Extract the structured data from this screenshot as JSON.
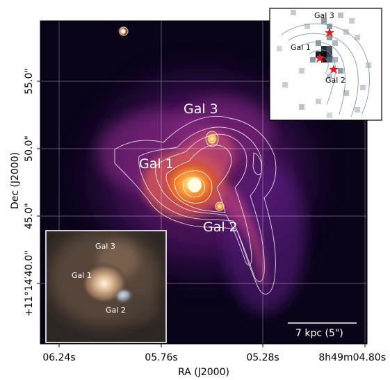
{
  "axes": {
    "xlabel": "RA (J2000)",
    "ylabel": "Dec (J2000)",
    "x_ticks": [
      "06.24s",
      "05.76s",
      "05.28s",
      "8h49m04.80s"
    ],
    "y_ticks": [
      "55.0\"",
      "50.0\"",
      "45.0\"",
      "+11°14′40.0\""
    ]
  },
  "main_labels": {
    "gal1": "Gal 1",
    "gal2": "Gal 2",
    "gal3": "Gal 3"
  },
  "scale_bar": {
    "label": "7 kpc (5\")"
  },
  "inset_topright": {
    "gal1": "Gal 1",
    "gal2": "Gal 2",
    "gal3": "Gal 3"
  },
  "inset_bottomleft": {
    "gal1": "Gal 1",
    "gal2": "Gal 2",
    "gal3": "Gal 3"
  },
  "colors": {
    "colormap": "inferno",
    "contour": "#ffffff",
    "marker": "#e02020",
    "inset_pixels": "#7a8a98"
  }
}
